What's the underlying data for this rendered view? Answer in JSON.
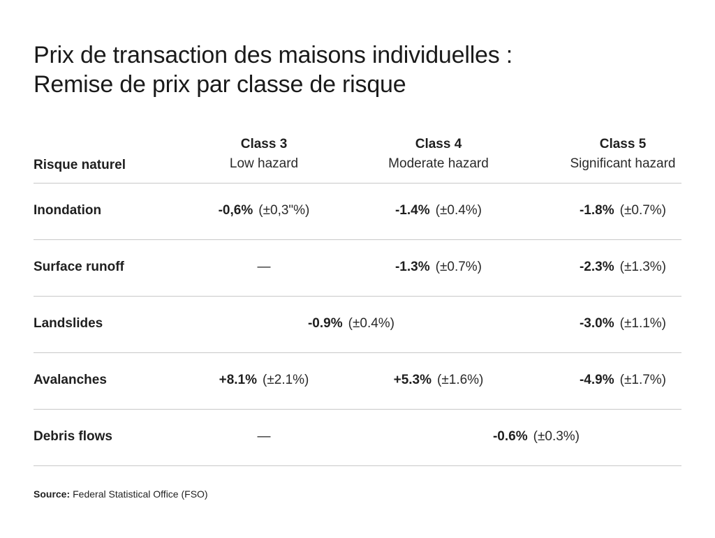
{
  "title": {
    "line1": "Prix de transaction des maisons individuelles :",
    "line2": "Remise de prix par classe de risque"
  },
  "header": {
    "label": "Risque naturel",
    "classes": [
      {
        "name": "Class 3",
        "hazard": "Low hazard"
      },
      {
        "name": "Class 4",
        "hazard": "Moderate hazard"
      },
      {
        "name": "Class 5",
        "hazard": "Significant hazard"
      }
    ]
  },
  "rows": [
    {
      "label": "Inondation",
      "c3": {
        "value": "-0,6%",
        "se": "(±0,3\"%)"
      },
      "c4": {
        "value": "-1.4%",
        "se": "(±0.4%)"
      },
      "c5": {
        "value": "-1.8%",
        "se": "(±0.7%)"
      }
    },
    {
      "label": "Surface runoff",
      "c3": {
        "value": "—"
      },
      "c4": {
        "value": "-1.3%",
        "se": "(±0.7%)"
      },
      "c5": {
        "value": "-2.3%",
        "se": "(±1.3%)"
      }
    },
    {
      "label": "Landslides",
      "c34": {
        "value": "-0.9%",
        "se": "(±0.4%)"
      },
      "c5": {
        "value": "-3.0%",
        "se": "(±1.1%)"
      }
    },
    {
      "label": "Avalanches",
      "c3": {
        "value": "+8.1%",
        "se": "(±2.1%)"
      },
      "c4": {
        "value": "+5.3%",
        "se": "(±1.6%)"
      },
      "c5": {
        "value": "-4.9%",
        "se": "(±1.7%)"
      }
    },
    {
      "label": "Debris flows",
      "c3": {
        "value": "—"
      },
      "c45": {
        "value": "-0.6%",
        "se": "(±0.3%)"
      }
    }
  ],
  "source": {
    "label": "Source:",
    "text": "Federal Statistical Office (FSO)"
  }
}
